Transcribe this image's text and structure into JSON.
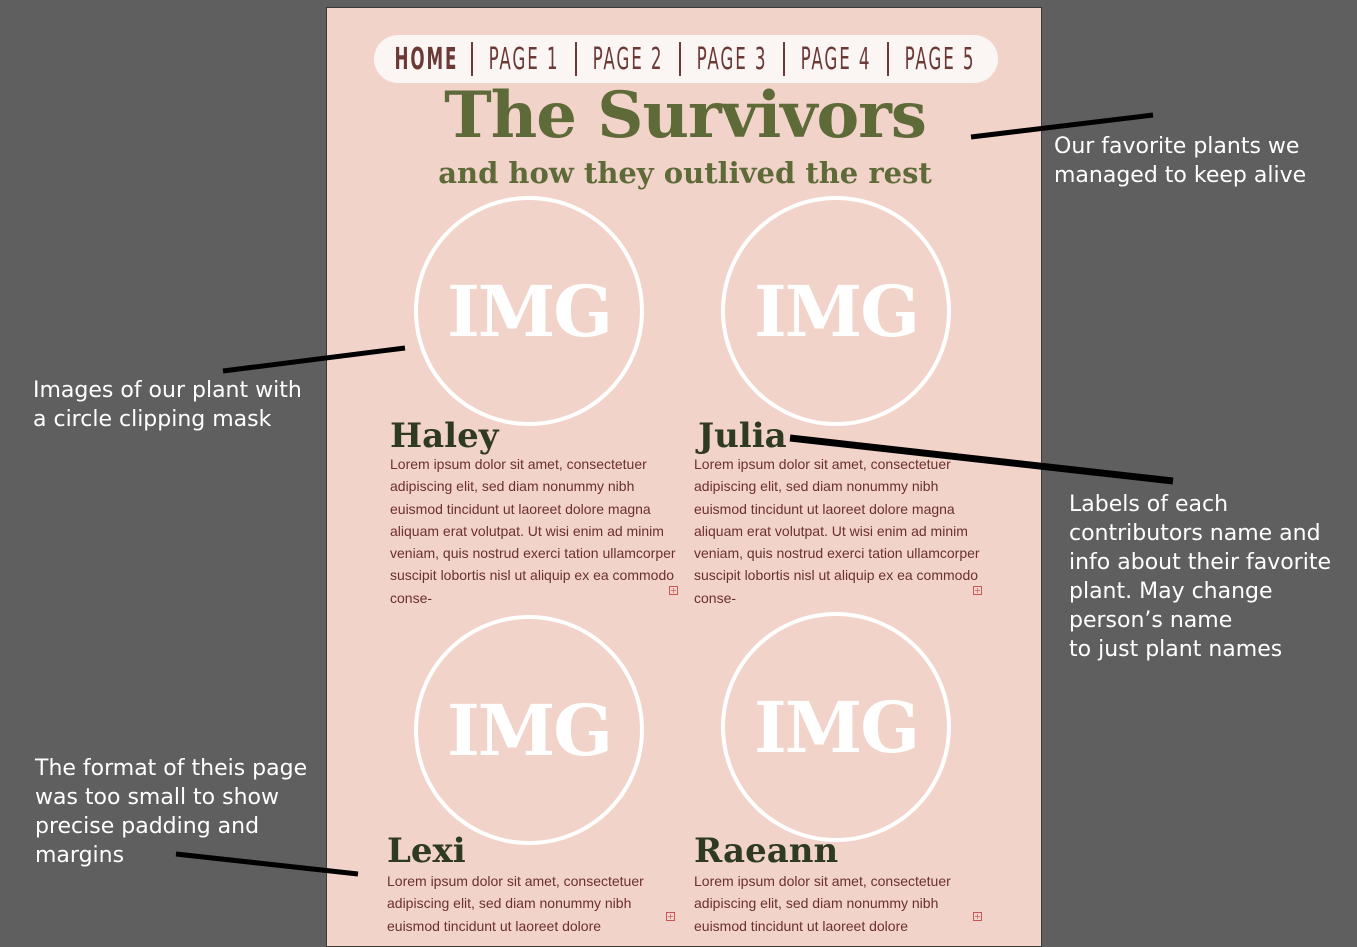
{
  "nav": {
    "items": [
      "HOME",
      "PAGE 1",
      "PAGE 2",
      "PAGE 3",
      "PAGE 4",
      "PAGE 5"
    ]
  },
  "header": {
    "title": "The Survivors",
    "subtitle": "and how they outlived the rest"
  },
  "cards": [
    {
      "img_label": "IMG",
      "name": "Haley",
      "text": "Lorem ipsum dolor sit amet, consectetuer adipiscing elit, sed diam nonummy nibh euismod tincidunt ut laoreet dolore magna aliquam erat volutpat. Ut wisi enim ad minim veniam, quis nostrud exerci tation ullamcorper suscipit lobortis nisl ut aliquip ex ea commodo conse-"
    },
    {
      "img_label": "IMG",
      "name": "Julia",
      "text": "Lorem ipsum dolor sit amet, consectetuer adipiscing elit, sed diam nonummy nibh euismod tincidunt ut laoreet dolore magna aliquam erat volutpat. Ut wisi enim ad minim veniam, quis nostrud exerci tation ullamcorper suscipit lobortis nisl ut aliquip ex ea commodo conse-"
    },
    {
      "img_label": "IMG",
      "name": "Lexi",
      "text": "Lorem ipsum dolor sit amet, consectetuer adipiscing elit, sed diam nonummy nibh euismod tincidunt ut laoreet dolore"
    },
    {
      "img_label": "IMG",
      "name": "Raeann",
      "text": "Lorem ipsum dolor sit amet, consectetuer adipiscing elit, sed diam nonummy nibh euismod tincidunt ut laoreet dolore"
    }
  ],
  "overflow_marker": "+",
  "annotations": {
    "title_note": "Our favorite plants we\nmanaged to keep alive",
    "image_note": "Images of our plant with\na circle clipping mask",
    "labels_note": "Labels of each\ncontributors name and\ninfo about their favorite\nplant. May change\nperson’s name\nto just plant names",
    "format_note": "The format of theis page\nwas too small to show\nprecise padding and\nmargins"
  },
  "colors": {
    "canvas": "#5f5f5f",
    "page": "#f2d3c9",
    "title_green": "#5e6b38",
    "name_dark": "#2f3a22",
    "nav_text": "#6b3a37"
  }
}
